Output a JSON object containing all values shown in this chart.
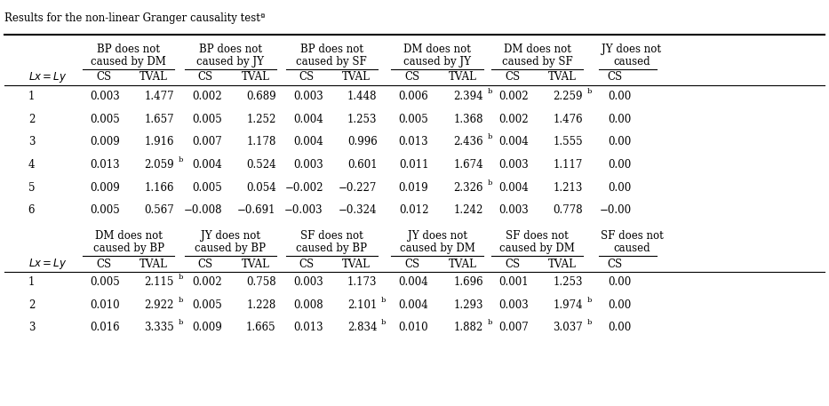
{
  "title": "Results for the non-linear Granger causality testª",
  "background_color": "#ffffff",
  "top_section": {
    "headers": [
      {
        "label": "BP does not\ncaused by DM",
        "cols": [
          "CS",
          "TVAL"
        ]
      },
      {
        "label": "BP does not\ncaused by JY",
        "cols": [
          "CS",
          "TVAL"
        ]
      },
      {
        "label": "BP does not\ncaused by SF",
        "cols": [
          "CS",
          "TVAL"
        ]
      },
      {
        "label": "DM does not\ncaused by JY",
        "cols": [
          "CS",
          "TVAL"
        ]
      },
      {
        "label": "DM does not\ncaused by SF",
        "cols": [
          "CS",
          "TVAL"
        ]
      },
      {
        "label": "JY does not\ncaused",
        "cols": [
          "CS"
        ]
      }
    ],
    "rows": [
      [
        1,
        "0.003",
        "1.477",
        "0.002",
        "0.689",
        "0.003",
        "1.448",
        "0.006",
        "2.394b",
        "0.002",
        "2.259b",
        "0.00"
      ],
      [
        2,
        "0.005",
        "1.657",
        "0.005",
        "1.252",
        "0.004",
        "1.253",
        "0.005",
        "1.368",
        "0.002",
        "1.476",
        "0.00"
      ],
      [
        3,
        "0.009",
        "1.916",
        "0.007",
        "1.178",
        "0.004",
        "0.996",
        "0.013",
        "2.436b",
        "0.004",
        "1.555",
        "0.00"
      ],
      [
        4,
        "0.013",
        "2.059b",
        "0.004",
        "0.524",
        "0.003",
        "0.601",
        "0.011",
        "1.674",
        "0.003",
        "1.117",
        "0.00"
      ],
      [
        5,
        "0.009",
        "1.166",
        "0.005",
        "0.054",
        "−0.002",
        "−0.227",
        "0.019",
        "2.326b",
        "0.004",
        "1.213",
        "0.00"
      ],
      [
        6,
        "0.005",
        "0.567",
        "−0.008",
        "−0.691",
        "−0.003",
        "−0.324",
        "0.012",
        "1.242",
        "0.003",
        "0.778",
        "−0.00"
      ]
    ]
  },
  "bottom_section": {
    "headers": [
      {
        "label": "DM does not\ncaused by BP",
        "cols": [
          "CS",
          "TVAL"
        ]
      },
      {
        "label": "JY does not\ncaused by BP",
        "cols": [
          "CS",
          "TVAL"
        ]
      },
      {
        "label": "SF does not\ncaused by BP",
        "cols": [
          "CS",
          "TVAL"
        ]
      },
      {
        "label": "JY does not\ncaused by DM",
        "cols": [
          "CS",
          "TVAL"
        ]
      },
      {
        "label": "SF does not\ncaused by DM",
        "cols": [
          "CS",
          "TVAL"
        ]
      },
      {
        "label": "SF does not\ncaused",
        "cols": [
          "CS"
        ]
      }
    ],
    "rows": [
      [
        1,
        "0.005",
        "2.115b",
        "0.002",
        "0.758",
        "0.003",
        "1.173",
        "0.004",
        "1.696",
        "0.001",
        "1.253",
        "0.00"
      ],
      [
        2,
        "0.010",
        "2.922b",
        "0.005",
        "1.228",
        "0.008",
        "2.101b",
        "0.004",
        "1.293",
        "0.003",
        "1.974b",
        "0.00"
      ],
      [
        3,
        "0.016",
        "3.335b",
        "0.009",
        "1.665",
        "0.013",
        "2.834b",
        "0.010",
        "1.882b",
        "0.007",
        "3.037b",
        "0.00"
      ]
    ]
  }
}
